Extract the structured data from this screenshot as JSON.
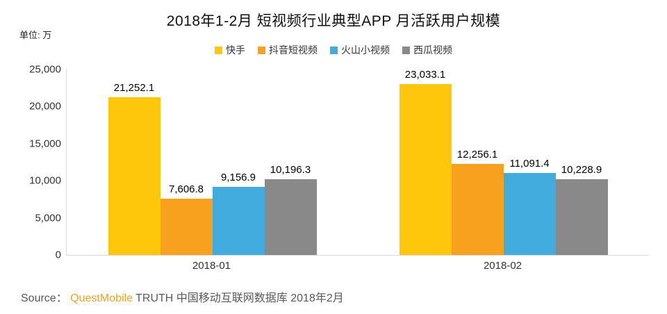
{
  "unit_label": "单位: 万",
  "source": {
    "prefix": "Source： ",
    "brand": "QuestMobile",
    "suffix": " TRUTH 中国移动互联网数据库 2018年2月",
    "brand_color": "#f7a11a"
  },
  "chart_data": {
    "type": "bar",
    "title": "2018年1-2月 短视频行业典型APP 月活跃用户规模",
    "unit": "万",
    "categories": [
      "2018-01",
      "2018-02"
    ],
    "series": [
      {
        "key": "kuaishou",
        "name": "快手",
        "color": "#fec70b",
        "values": [
          21252.1,
          23033.1
        ],
        "labels": [
          "21,252.1",
          "23,033.1"
        ]
      },
      {
        "key": "douyin",
        "name": "抖音短视频",
        "color": "#f8a11e",
        "values": [
          7606.8,
          12256.1
        ],
        "labels": [
          "7,606.8",
          "12,256.1"
        ]
      },
      {
        "key": "huoshan",
        "name": "火山小视频",
        "color": "#43acde",
        "values": [
          9156.9,
          11091.4
        ],
        "labels": [
          "9,156.9",
          "11,091.4"
        ]
      },
      {
        "key": "xigua",
        "name": "西瓜视频",
        "color": "#898989",
        "values": [
          10196.3,
          10228.9
        ],
        "labels": [
          "10,196.3",
          "10,228.9"
        ]
      }
    ],
    "ylim": [
      0,
      25000
    ],
    "yticks": [
      {
        "value": 0,
        "label": "0"
      },
      {
        "value": 5000,
        "label": "5,000"
      },
      {
        "value": 10000,
        "label": "10,000"
      },
      {
        "value": 15000,
        "label": "15,000"
      },
      {
        "value": 20000,
        "label": "20,000"
      },
      {
        "value": 25000,
        "label": "25,000"
      }
    ],
    "grid": false,
    "legend_position": "top",
    "axis_color": "#d9d9d9"
  }
}
